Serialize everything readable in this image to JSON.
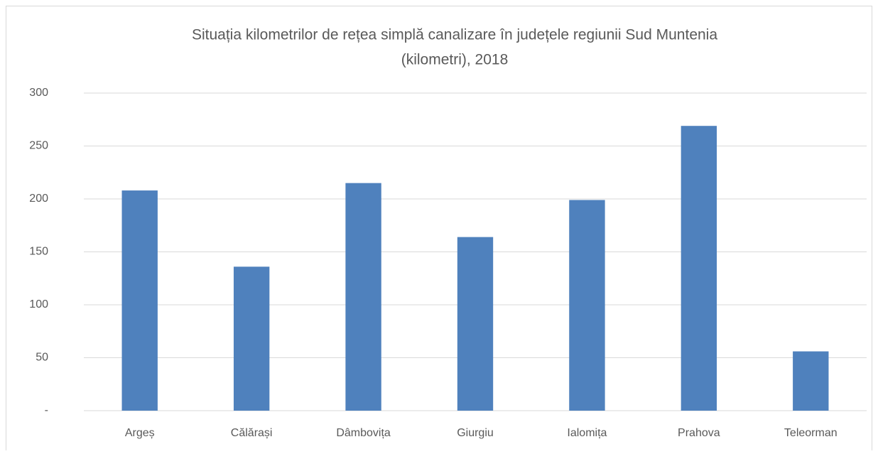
{
  "chart_data": {
    "type": "bar",
    "title": [
      "Situația kilometrilor de rețea simplă canalizare în județele regiunii Sud Muntenia",
      "(kilometri), 2018"
    ],
    "categories": [
      "Argeș",
      "Călărași",
      "Dâmbovița",
      "Giurgiu",
      "Ialomița",
      "Prahova",
      "Teleorman"
    ],
    "values": [
      208,
      136,
      215,
      164,
      199,
      269,
      56
    ],
    "color": "#4f81bd",
    "ylim": [
      0,
      300
    ],
    "yticks": [
      {
        "value": 0,
        "label": "-"
      },
      50,
      100,
      150,
      200,
      250,
      300
    ],
    "grid": true
  }
}
